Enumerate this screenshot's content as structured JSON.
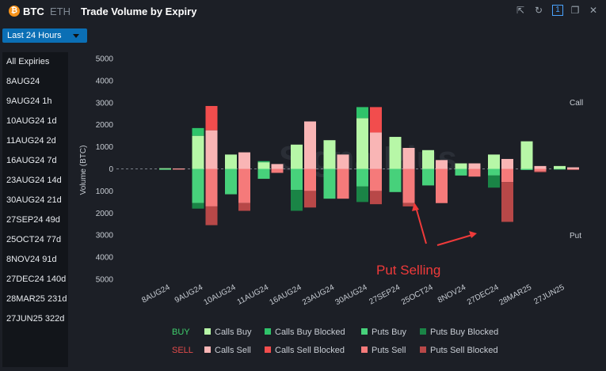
{
  "header": {
    "coin_symbol": "₿",
    "tab_btc": "BTC",
    "tab_eth": "ETH",
    "title": "Trade Volume by Expiry",
    "icons": [
      "share-icon",
      "refresh-icon",
      "one-icon",
      "duplicate-icon",
      "close-icon"
    ],
    "one_label": "1"
  },
  "range_select": {
    "value": "Last 24 Hours"
  },
  "sidebar": {
    "items": [
      {
        "label": "All Expiries"
      },
      {
        "label": "8AUG24"
      },
      {
        "label": "9AUG24  1h"
      },
      {
        "label": "10AUG24  1d"
      },
      {
        "label": "11AUG24  2d"
      },
      {
        "label": "16AUG24  7d"
      },
      {
        "label": "23AUG24  14d"
      },
      {
        "label": "30AUG24  21d"
      },
      {
        "label": "27SEP24  49d"
      },
      {
        "label": "25OCT24  77d"
      },
      {
        "label": "8NOV24  91d"
      },
      {
        "label": "27DEC24  140d"
      },
      {
        "label": "28MAR25  231d"
      },
      {
        "label": "27JUN25  322d"
      }
    ]
  },
  "chart_data": {
    "type": "bar",
    "ylabel": "Volume (BTC)",
    "ylim": [
      -5000,
      5000
    ],
    "y_ticks": [
      5000,
      4000,
      3000,
      2000,
      1000,
      0,
      1000,
      2000,
      3000,
      4000,
      5000
    ],
    "y_tick_values": [
      5000,
      4000,
      3000,
      2000,
      1000,
      0,
      -1000,
      -2000,
      -3000,
      -4000,
      -5000
    ],
    "side_labels": {
      "top": "Call",
      "bottom": "Put"
    },
    "watermark": "SignalPlus",
    "annotation": "Put Selling",
    "categories": [
      "8AUG24",
      "9AUG24",
      "10AUG24",
      "11AUG24",
      "16AUG24",
      "23AUG24",
      "30AUG24",
      "27SEP24",
      "25OCT24",
      "8NOV24",
      "27DEC24",
      "28MAR25",
      "27JUN25"
    ],
    "buy": {
      "calls_buy": [
        30,
        1850,
        650,
        350,
        1100,
        1300,
        2800,
        1450,
        850,
        250,
        650,
        1250,
        130
      ],
      "calls_buy_blocked": [
        0,
        350,
        0,
        50,
        0,
        0,
        500,
        0,
        0,
        0,
        0,
        0,
        0
      ],
      "puts_buy": [
        -40,
        -1800,
        -1150,
        -450,
        -1900,
        -1350,
        -1500,
        -1050,
        -750,
        -300,
        -850,
        -50,
        -30
      ],
      "puts_buy_blocked": [
        0,
        -250,
        0,
        0,
        -950,
        0,
        -700,
        0,
        0,
        0,
        -550,
        0,
        0
      ]
    },
    "sell": {
      "calls_sell": [
        20,
        2850,
        750,
        220,
        2150,
        650,
        2800,
        950,
        400,
        250,
        450,
        130,
        70
      ],
      "calls_sell_blocked": [
        0,
        1100,
        0,
        0,
        0,
        0,
        1150,
        0,
        0,
        0,
        0,
        0,
        0
      ],
      "puts_sell": [
        -30,
        -2550,
        -1900,
        -180,
        -1750,
        -1350,
        -1600,
        -1700,
        -1550,
        -350,
        -2400,
        -150,
        -40
      ],
      "puts_sell_blocked": [
        0,
        -850,
        -350,
        0,
        -750,
        0,
        -600,
        -150,
        0,
        0,
        -1800,
        -30,
        0
      ]
    },
    "legend": {
      "buy_label": "BUY",
      "sell_label": "SELL",
      "items": [
        {
          "name": "Calls Buy",
          "color": "#b7f7a7"
        },
        {
          "name": "Calls Buy Blocked",
          "color": "#2fc36a"
        },
        {
          "name": "Puts Buy",
          "color": "#47d17b"
        },
        {
          "name": "Puts Buy Blocked",
          "color": "#1a8446"
        },
        {
          "name": "Calls Sell",
          "color": "#f9b5b5"
        },
        {
          "name": "Calls Sell Blocked",
          "color": "#f24d4d"
        },
        {
          "name": "Puts Sell",
          "color": "#f57a7a"
        },
        {
          "name": "Puts Sell Blocked",
          "color": "#b84848"
        }
      ]
    },
    "grid": false,
    "legend_position": "bottom"
  },
  "colors": {
    "background": "#1c1f26",
    "sidebar": "#12151a",
    "accent": "#0b6fb5",
    "buy_text": "#3fcf6c",
    "sell_text": "#e24b4b",
    "annotation": "#ef3a3a"
  }
}
